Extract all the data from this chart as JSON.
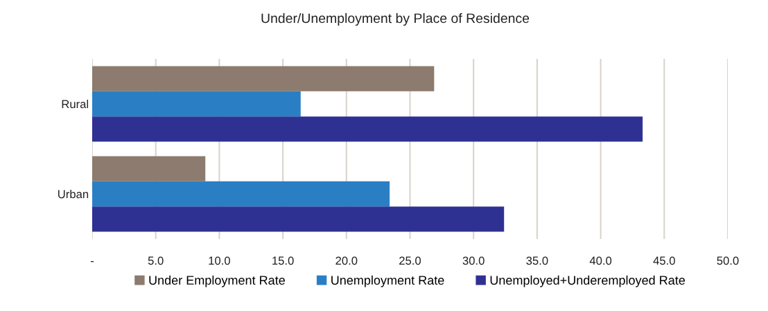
{
  "chart_data": {
    "type": "bar",
    "orientation": "horizontal",
    "title": "Under/Unemployment by Place of Residence",
    "categories": [
      "Rural",
      "Urban"
    ],
    "series": [
      {
        "name": "Under Employment Rate",
        "color": "#8c7b6e",
        "values": [
          26.9,
          8.9
        ]
      },
      {
        "name": "Unemployment Rate",
        "color": "#2a7fc4",
        "values": [
          16.4,
          23.4
        ]
      },
      {
        "name": "Unemployed+Underemployed Rate",
        "color": "#2e3192",
        "values": [
          43.3,
          32.4
        ]
      }
    ],
    "xlim": [
      0,
      50
    ],
    "xticks": [
      {
        "value": 0,
        "label": "-"
      },
      {
        "value": 5,
        "label": "5.0"
      },
      {
        "value": 10,
        "label": "10.0"
      },
      {
        "value": 15,
        "label": "15.0"
      },
      {
        "value": 20,
        "label": "20.0"
      },
      {
        "value": 25,
        "label": "25.0"
      },
      {
        "value": 30,
        "label": "30.0"
      },
      {
        "value": 35,
        "label": "35.0"
      },
      {
        "value": 40,
        "label": "40.0"
      },
      {
        "value": 45,
        "label": "45.0"
      },
      {
        "value": 50,
        "label": "50.0"
      }
    ],
    "grid": "x",
    "legend": "bottom"
  }
}
